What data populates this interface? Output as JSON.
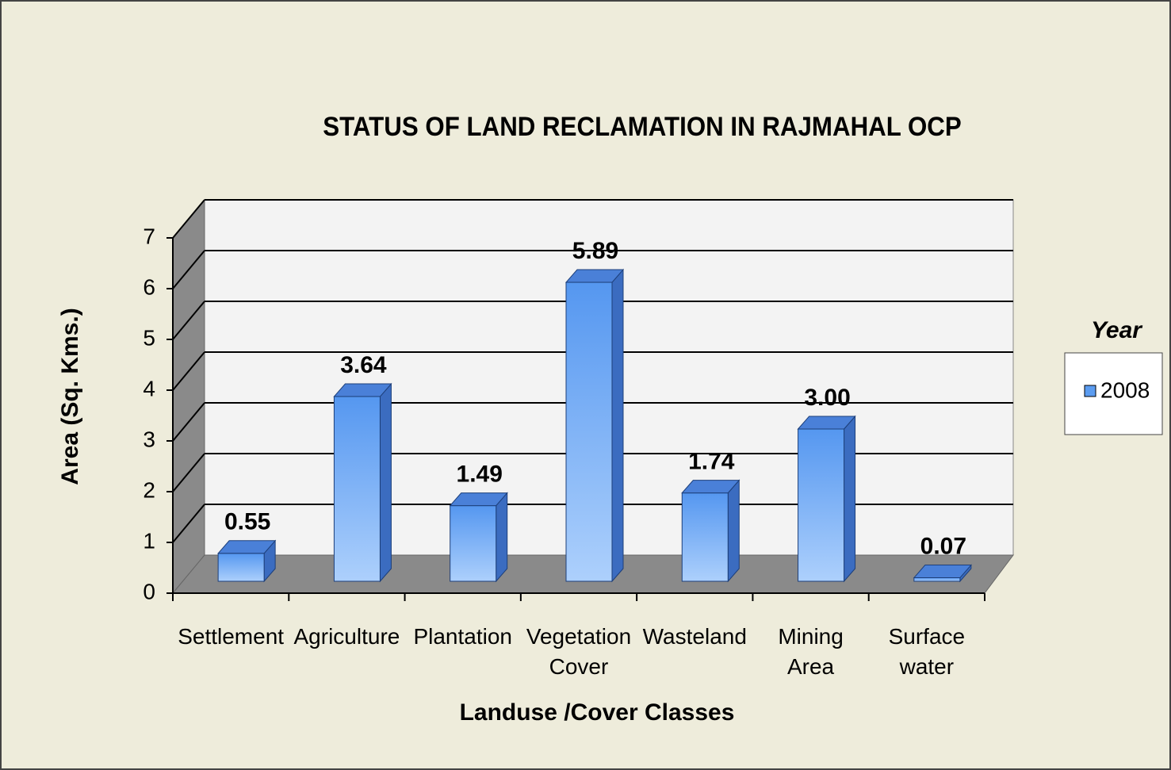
{
  "chart_data": {
    "type": "bar3d",
    "title": "STATUS OF LAND RECLAMATION   IN RAJMAHAL  OCP",
    "x_label": "Landuse /Cover Classes",
    "y_label": "Area (Sq. Kms.)",
    "legend_title": "Year",
    "legend_position": "right",
    "categories": [
      "Settlement",
      "Agriculture",
      "Plantation",
      "Vegetation Cover",
      "Wasteland",
      "Mining Area",
      "Surface water"
    ],
    "series": [
      {
        "name": "2008",
        "color": "#5b9cf0",
        "values": [
          0.55,
          3.64,
          1.49,
          5.89,
          1.74,
          3.0,
          0.07
        ],
        "value_labels": [
          "0.55",
          "3.64",
          "1.49",
          "5.89",
          "1.74",
          "3.00",
          "0.07"
        ]
      }
    ],
    "ylim": [
      0,
      7
    ],
    "yticks": [
      0,
      1,
      2,
      3,
      4,
      5,
      6,
      7
    ],
    "grid": true
  }
}
